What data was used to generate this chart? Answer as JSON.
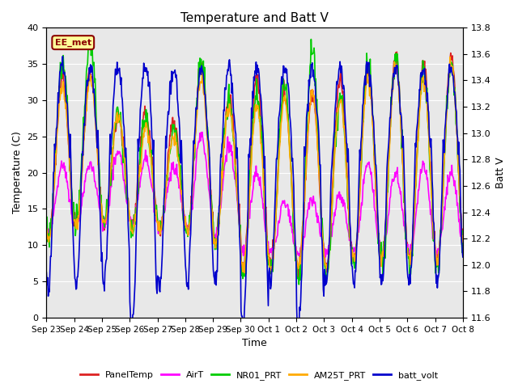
{
  "title": "Temperature and Batt V",
  "xlabel": "Time",
  "ylabel_left": "Temperature (C)",
  "ylabel_right": "Batt V",
  "annotation": "EE_met",
  "x_tick_labels": [
    "Sep 23",
    "Sep 24",
    "Sep 25",
    "Sep 26",
    "Sep 27",
    "Sep 28",
    "Sep 29",
    "Sep 30",
    "Oct 1",
    "Oct 2",
    "Oct 3",
    "Oct 4",
    "Oct 5",
    "Oct 6",
    "Oct 7",
    "Oct 8"
  ],
  "ylim_left": [
    0,
    40
  ],
  "ylim_right": [
    11.6,
    13.8
  ],
  "bg_color": "#e8e8e8",
  "fig_color": "#ffffff",
  "series": {
    "PanelTemp": {
      "color": "#dd2222",
      "lw": 1.2
    },
    "AirT": {
      "color": "#ff00ff",
      "lw": 1.2
    },
    "NR01_PRT": {
      "color": "#00cc00",
      "lw": 1.2
    },
    "AM25T_PRT": {
      "color": "#ffaa00",
      "lw": 1.2
    },
    "batt_volt": {
      "color": "#0000cc",
      "lw": 1.2
    }
  },
  "n_days": 15,
  "left_ticks": [
    0,
    5,
    10,
    15,
    20,
    25,
    30,
    35,
    40
  ],
  "right_ticks": [
    11.6,
    11.8,
    12.0,
    12.2,
    12.4,
    12.6,
    12.8,
    13.0,
    13.2,
    13.4,
    13.6,
    13.8
  ]
}
